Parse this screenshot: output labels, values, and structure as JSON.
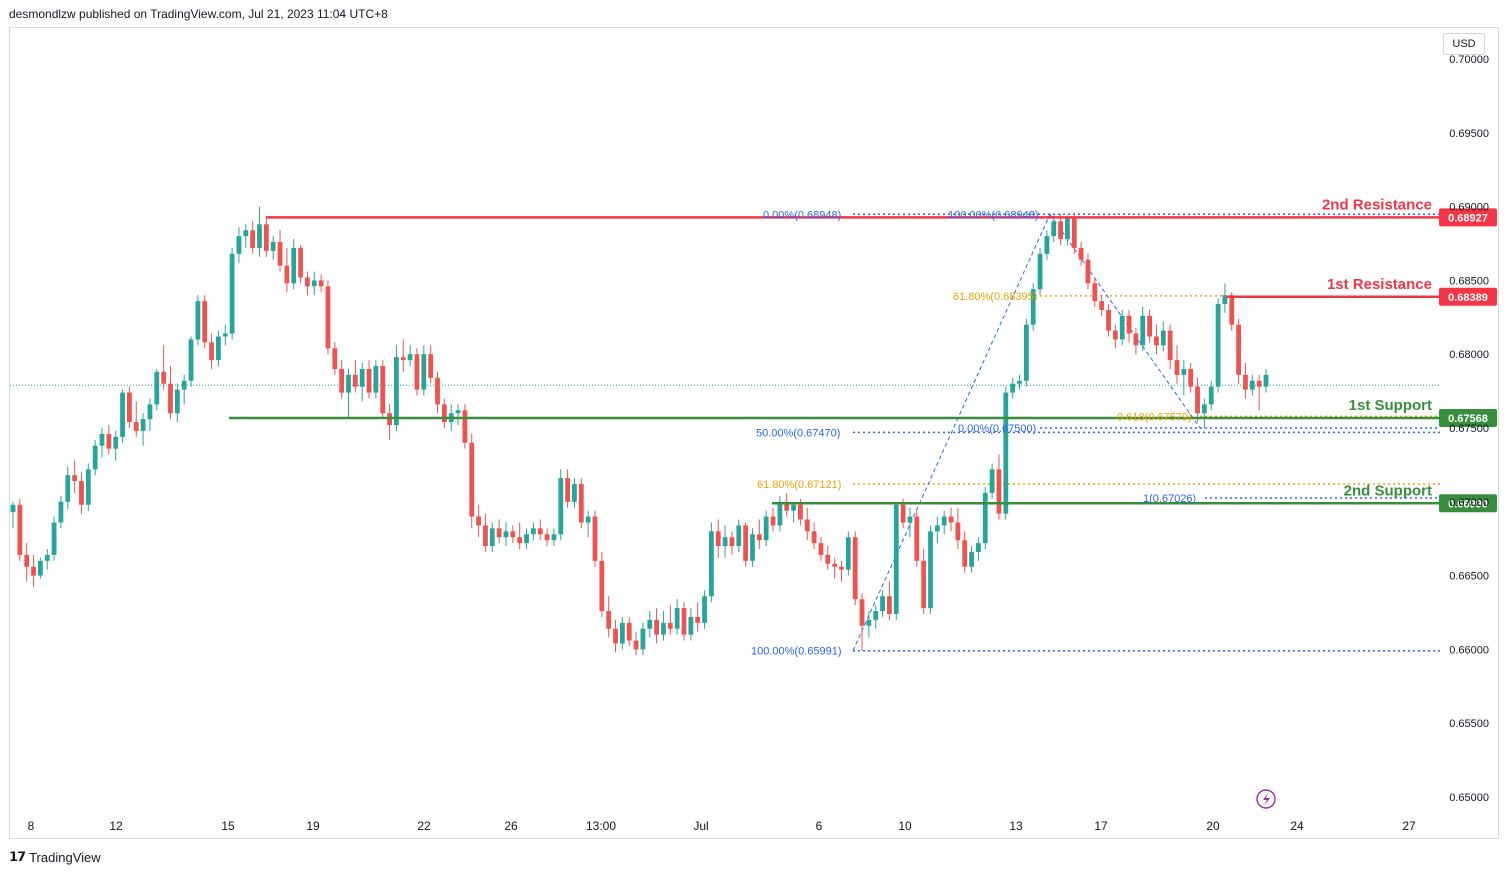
{
  "header": {
    "published": "desmondlzw published on TradingView.com, Jul 21, 2023 11:04 UTC+8"
  },
  "currency": "USD",
  "footer": {
    "logo": "𝟭𝟳",
    "brand": "TradingView"
  },
  "colors": {
    "up": "#26a69a",
    "down": "#ef5350",
    "resistance": "#f23645",
    "support": "#388e3c",
    "fib_blue": "#2962ff",
    "fib_orange": "#f0a30a",
    "grid_text": "#131722",
    "dotted_price": "#26a69a"
  },
  "chart_data": {
    "type": "candlestick",
    "title": "",
    "ylim": [
      0.648,
      0.7013
    ],
    "price_ticks": [
      "0.70000",
      "0.69500",
      "0.69000",
      "0.68500",
      "0.68000",
      "0.67500",
      "0.67000",
      "0.66500",
      "0.66000",
      "0.65500",
      "0.65000"
    ],
    "price_tick_values": [
      0.7,
      0.695,
      0.69,
      0.685,
      0.68,
      0.675,
      0.67,
      0.665,
      0.66,
      0.655,
      0.65
    ],
    "time_ticks": [
      "8",
      "12",
      "15",
      "19",
      "22",
      "26",
      "13:00",
      "Jul",
      "6",
      "10",
      "13",
      "17",
      "20",
      "24",
      "27"
    ],
    "levels": [
      {
        "name": "2nd Resistance",
        "value": 0.68927,
        "value_label": "0.68927",
        "kind": "resistance"
      },
      {
        "name": "1st Resistance",
        "value": 0.68389,
        "value_label": "0.68389",
        "kind": "resistance"
      },
      {
        "name": "1st Support",
        "value": 0.67568,
        "value_label": "0.67568",
        "kind": "support"
      },
      {
        "name": "2nd Support",
        "value": 0.6699,
        "value_label": "0.66990",
        "kind": "support"
      }
    ],
    "fib_labels": [
      {
        "text": "0.00%(0.68948)",
        "value": 0.68948,
        "color": "blue"
      },
      {
        "text": "100.00%(0.68948)",
        "value": 0.68948,
        "color": "blue"
      },
      {
        "text": "61.80%(0.68395)",
        "value": 0.68395,
        "color": "orange"
      },
      {
        "text": "50.00%(0.67470)",
        "value": 0.6747,
        "color": "blue"
      },
      {
        "text": "0.00%(0.67500)",
        "value": 0.675,
        "color": "blue"
      },
      {
        "text": "0.618(0.67579)",
        "value": 0.67579,
        "color": "orange"
      },
      {
        "text": "61.80%(0.67121)",
        "value": 0.67121,
        "color": "orange"
      },
      {
        "text": "1(0.67026)",
        "value": 0.67026,
        "color": "blue"
      },
      {
        "text": "100.00%(0.65991)",
        "value": 0.65991,
        "color": "blue"
      }
    ],
    "current_price": 0.6779,
    "candles": [
      [
        0.6693,
        0.67,
        0.6682,
        0.6698
      ],
      [
        0.6698,
        0.6702,
        0.666,
        0.6664
      ],
      [
        0.6664,
        0.6672,
        0.6646,
        0.6656
      ],
      [
        0.6656,
        0.6664,
        0.6642,
        0.665
      ],
      [
        0.665,
        0.6662,
        0.6648,
        0.666
      ],
      [
        0.666,
        0.6668,
        0.6654,
        0.6664
      ],
      [
        0.6664,
        0.669,
        0.666,
        0.6686
      ],
      [
        0.6686,
        0.6704,
        0.6682,
        0.67
      ],
      [
        0.67,
        0.6724,
        0.6695,
        0.6718
      ],
      [
        0.6718,
        0.6728,
        0.6706,
        0.6714
      ],
      [
        0.6714,
        0.672,
        0.6692,
        0.6698
      ],
      [
        0.6698,
        0.6726,
        0.6694,
        0.6722
      ],
      [
        0.6722,
        0.6742,
        0.6718,
        0.6738
      ],
      [
        0.6738,
        0.675,
        0.673,
        0.6746
      ],
      [
        0.6746,
        0.6752,
        0.6732,
        0.6736
      ],
      [
        0.6736,
        0.6748,
        0.6728,
        0.6744
      ],
      [
        0.6744,
        0.6776,
        0.674,
        0.6774
      ],
      [
        0.6774,
        0.6778,
        0.675,
        0.6754
      ],
      [
        0.6754,
        0.6768,
        0.6744,
        0.6748
      ],
      [
        0.6748,
        0.676,
        0.6738,
        0.6756
      ],
      [
        0.6756,
        0.677,
        0.6748,
        0.6766
      ],
      [
        0.6766,
        0.679,
        0.6762,
        0.6788
      ],
      [
        0.6788,
        0.6806,
        0.6776,
        0.678
      ],
      [
        0.678,
        0.6792,
        0.6756,
        0.676
      ],
      [
        0.676,
        0.678,
        0.6754,
        0.6776
      ],
      [
        0.6776,
        0.6786,
        0.6766,
        0.6782
      ],
      [
        0.6782,
        0.6812,
        0.6778,
        0.681
      ],
      [
        0.681,
        0.684,
        0.6806,
        0.6836
      ],
      [
        0.6836,
        0.684,
        0.6804,
        0.6808
      ],
      [
        0.6808,
        0.6814,
        0.679,
        0.6796
      ],
      [
        0.6796,
        0.6816,
        0.6792,
        0.6812
      ],
      [
        0.6812,
        0.682,
        0.6806,
        0.6814
      ],
      [
        0.6814,
        0.6872,
        0.681,
        0.6868
      ],
      [
        0.6868,
        0.6886,
        0.6862,
        0.688
      ],
      [
        0.688,
        0.6888,
        0.6872,
        0.6884
      ],
      [
        0.6884,
        0.689,
        0.6868,
        0.6872
      ],
      [
        0.6872,
        0.69,
        0.6866,
        0.6888
      ],
      [
        0.6888,
        0.6892,
        0.6866,
        0.687
      ],
      [
        0.687,
        0.688,
        0.6864,
        0.6876
      ],
      [
        0.6876,
        0.6884,
        0.6856,
        0.686
      ],
      [
        0.686,
        0.6872,
        0.6842,
        0.6848
      ],
      [
        0.6848,
        0.6878,
        0.6844,
        0.6872
      ],
      [
        0.6872,
        0.6874,
        0.6848,
        0.6852
      ],
      [
        0.6852,
        0.6856,
        0.684,
        0.6846
      ],
      [
        0.6846,
        0.6856,
        0.684,
        0.685
      ],
      [
        0.685,
        0.6854,
        0.6842,
        0.6846
      ],
      [
        0.6846,
        0.685,
        0.68,
        0.6804
      ],
      [
        0.6804,
        0.6808,
        0.6786,
        0.679
      ],
      [
        0.679,
        0.6796,
        0.677,
        0.6774
      ],
      [
        0.6774,
        0.679,
        0.6756,
        0.6786
      ],
      [
        0.6786,
        0.6796,
        0.6774,
        0.6778
      ],
      [
        0.6778,
        0.6794,
        0.6768,
        0.679
      ],
      [
        0.679,
        0.6796,
        0.677,
        0.6774
      ],
      [
        0.6774,
        0.6796,
        0.677,
        0.6792
      ],
      [
        0.6792,
        0.6796,
        0.6756,
        0.676
      ],
      [
        0.676,
        0.6766,
        0.6742,
        0.6752
      ],
      [
        0.6752,
        0.6806,
        0.6748,
        0.6798
      ],
      [
        0.6798,
        0.681,
        0.6788,
        0.6796
      ],
      [
        0.6796,
        0.6806,
        0.6792,
        0.68
      ],
      [
        0.68,
        0.6804,
        0.6772,
        0.6776
      ],
      [
        0.6776,
        0.6806,
        0.6772,
        0.68
      ],
      [
        0.68,
        0.6806,
        0.678,
        0.6784
      ],
      [
        0.6784,
        0.6788,
        0.676,
        0.6766
      ],
      [
        0.6766,
        0.677,
        0.675,
        0.6754
      ],
      [
        0.6754,
        0.6766,
        0.6748,
        0.676
      ],
      [
        0.676,
        0.6766,
        0.6752,
        0.6762
      ],
      [
        0.6762,
        0.6766,
        0.6736,
        0.674
      ],
      [
        0.674,
        0.6746,
        0.6682,
        0.669
      ],
      [
        0.669,
        0.6698,
        0.6676,
        0.6684
      ],
      [
        0.6684,
        0.6692,
        0.6666,
        0.667
      ],
      [
        0.667,
        0.6686,
        0.6666,
        0.6682
      ],
      [
        0.6682,
        0.6688,
        0.6672,
        0.6676
      ],
      [
        0.6676,
        0.6686,
        0.667,
        0.668
      ],
      [
        0.668,
        0.6684,
        0.6672,
        0.6676
      ],
      [
        0.6676,
        0.6686,
        0.6668,
        0.6672
      ],
      [
        0.6672,
        0.6682,
        0.6668,
        0.6678
      ],
      [
        0.6678,
        0.6686,
        0.6674,
        0.6682
      ],
      [
        0.6682,
        0.6688,
        0.6674,
        0.6678
      ],
      [
        0.6678,
        0.6682,
        0.667,
        0.6674
      ],
      [
        0.6674,
        0.6682,
        0.667,
        0.6678
      ],
      [
        0.6678,
        0.6722,
        0.6674,
        0.6716
      ],
      [
        0.6716,
        0.6722,
        0.6696,
        0.67
      ],
      [
        0.67,
        0.6716,
        0.6696,
        0.6712
      ],
      [
        0.6712,
        0.6716,
        0.6682,
        0.6686
      ],
      [
        0.6686,
        0.6694,
        0.6676,
        0.669
      ],
      [
        0.669,
        0.6694,
        0.6656,
        0.666
      ],
      [
        0.666,
        0.6666,
        0.6622,
        0.6626
      ],
      [
        0.6626,
        0.6636,
        0.6608,
        0.6614
      ],
      [
        0.6614,
        0.662,
        0.6598,
        0.6604
      ],
      [
        0.6604,
        0.6622,
        0.66,
        0.6618
      ],
      [
        0.6618,
        0.6622,
        0.6602,
        0.6606
      ],
      [
        0.6606,
        0.6612,
        0.6596,
        0.66
      ],
      [
        0.66,
        0.6618,
        0.6596,
        0.6614
      ],
      [
        0.6614,
        0.6626,
        0.6608,
        0.662
      ],
      [
        0.662,
        0.6628,
        0.6604,
        0.661
      ],
      [
        0.661,
        0.6626,
        0.6606,
        0.6618
      ],
      [
        0.6618,
        0.663,
        0.661,
        0.6614
      ],
      [
        0.6614,
        0.6634,
        0.661,
        0.6628
      ],
      [
        0.6628,
        0.6632,
        0.6606,
        0.661
      ],
      [
        0.661,
        0.6628,
        0.6606,
        0.6622
      ],
      [
        0.6622,
        0.6632,
        0.6612,
        0.6618
      ],
      [
        0.6618,
        0.664,
        0.6614,
        0.6636
      ],
      [
        0.6636,
        0.6686,
        0.6632,
        0.668
      ],
      [
        0.668,
        0.6688,
        0.6662,
        0.667
      ],
      [
        0.667,
        0.6684,
        0.6662,
        0.6676
      ],
      [
        0.6676,
        0.668,
        0.6664,
        0.667
      ],
      [
        0.667,
        0.6688,
        0.6666,
        0.6684
      ],
      [
        0.6684,
        0.6686,
        0.6656,
        0.666
      ],
      [
        0.666,
        0.6682,
        0.6656,
        0.6678
      ],
      [
        0.6678,
        0.6688,
        0.6668,
        0.6674
      ],
      [
        0.6674,
        0.6694,
        0.667,
        0.669
      ],
      [
        0.669,
        0.6696,
        0.668,
        0.6684
      ],
      [
        0.6684,
        0.6704,
        0.668,
        0.67
      ],
      [
        0.67,
        0.6706,
        0.669,
        0.6694
      ],
      [
        0.6694,
        0.67,
        0.6686,
        0.6698
      ],
      [
        0.6698,
        0.6702,
        0.6684,
        0.6688
      ],
      [
        0.6688,
        0.6696,
        0.6674,
        0.668
      ],
      [
        0.668,
        0.6686,
        0.6668,
        0.6672
      ],
      [
        0.6672,
        0.6676,
        0.666,
        0.6664
      ],
      [
        0.6664,
        0.667,
        0.6654,
        0.6658
      ],
      [
        0.6658,
        0.6662,
        0.6648,
        0.6656
      ],
      [
        0.6656,
        0.666,
        0.6646,
        0.6654
      ],
      [
        0.6654,
        0.668,
        0.665,
        0.6676
      ],
      [
        0.6676,
        0.668,
        0.663,
        0.6634
      ],
      [
        0.6634,
        0.6638,
        0.6599,
        0.6616
      ],
      [
        0.6616,
        0.6626,
        0.6608,
        0.662
      ],
      [
        0.662,
        0.663,
        0.6614,
        0.6626
      ],
      [
        0.6626,
        0.664,
        0.6622,
        0.6636
      ],
      [
        0.6636,
        0.6646,
        0.662,
        0.6624
      ],
      [
        0.6624,
        0.67,
        0.662,
        0.6698
      ],
      [
        0.6698,
        0.6702,
        0.6682,
        0.6686
      ],
      [
        0.6686,
        0.6696,
        0.6676,
        0.669
      ],
      [
        0.669,
        0.6694,
        0.6656,
        0.666
      ],
      [
        0.666,
        0.6668,
        0.6624,
        0.6628
      ],
      [
        0.6628,
        0.6684,
        0.6624,
        0.668
      ],
      [
        0.668,
        0.669,
        0.6672,
        0.6684
      ],
      [
        0.6684,
        0.6694,
        0.6678,
        0.669
      ],
      [
        0.669,
        0.6696,
        0.668,
        0.6686
      ],
      [
        0.6686,
        0.6696,
        0.6668,
        0.6674
      ],
      [
        0.6674,
        0.668,
        0.6652,
        0.6656
      ],
      [
        0.6656,
        0.667,
        0.6652,
        0.6666
      ],
      [
        0.6666,
        0.6676,
        0.666,
        0.6672
      ],
      [
        0.6672,
        0.671,
        0.6668,
        0.6706
      ],
      [
        0.6706,
        0.6726,
        0.6702,
        0.6722
      ],
      [
        0.6722,
        0.6732,
        0.6688,
        0.6692
      ],
      [
        0.6692,
        0.6778,
        0.6688,
        0.6774
      ],
      [
        0.6774,
        0.6784,
        0.677,
        0.678
      ],
      [
        0.678,
        0.6786,
        0.6776,
        0.6782
      ],
      [
        0.6782,
        0.6824,
        0.6778,
        0.682
      ],
      [
        0.682,
        0.6848,
        0.6816,
        0.6844
      ],
      [
        0.6844,
        0.6872,
        0.684,
        0.6868
      ],
      [
        0.6868,
        0.6884,
        0.6864,
        0.688
      ],
      [
        0.688,
        0.6894,
        0.6876,
        0.689
      ],
      [
        0.689,
        0.6895,
        0.6874,
        0.6878
      ],
      [
        0.6878,
        0.6894,
        0.6874,
        0.6892
      ],
      [
        0.6892,
        0.6896,
        0.6868,
        0.6872
      ],
      [
        0.6872,
        0.6876,
        0.686,
        0.6864
      ],
      [
        0.6864,
        0.6868,
        0.6844,
        0.6848
      ],
      [
        0.6848,
        0.6852,
        0.6832,
        0.6836
      ],
      [
        0.6836,
        0.684,
        0.6826,
        0.683
      ],
      [
        0.683,
        0.6834,
        0.6812,
        0.6816
      ],
      [
        0.6816,
        0.682,
        0.6804,
        0.681
      ],
      [
        0.681,
        0.683,
        0.6806,
        0.6826
      ],
      [
        0.6826,
        0.683,
        0.6808,
        0.6814
      ],
      [
        0.6814,
        0.6818,
        0.68,
        0.6806
      ],
      [
        0.6806,
        0.6832,
        0.6802,
        0.6826
      ],
      [
        0.6826,
        0.683,
        0.6808,
        0.6812
      ],
      [
        0.6812,
        0.682,
        0.68,
        0.6806
      ],
      [
        0.6806,
        0.6822,
        0.6802,
        0.6816
      ],
      [
        0.6816,
        0.682,
        0.679,
        0.6796
      ],
      [
        0.6796,
        0.6806,
        0.678,
        0.6786
      ],
      [
        0.6786,
        0.6796,
        0.6772,
        0.679
      ],
      [
        0.679,
        0.6794,
        0.6774,
        0.6778
      ],
      [
        0.6778,
        0.6784,
        0.6754,
        0.676
      ],
      [
        0.676,
        0.677,
        0.675,
        0.6766
      ],
      [
        0.6766,
        0.6782,
        0.6762,
        0.6778
      ],
      [
        0.6778,
        0.6838,
        0.6774,
        0.6834
      ],
      [
        0.6834,
        0.6848,
        0.6828,
        0.684
      ],
      [
        0.684,
        0.6842,
        0.6816,
        0.682
      ],
      [
        0.682,
        0.6824,
        0.678,
        0.6786
      ],
      [
        0.6786,
        0.6794,
        0.677,
        0.6776
      ],
      [
        0.6776,
        0.6786,
        0.6772,
        0.6782
      ],
      [
        0.6782,
        0.6786,
        0.6762,
        0.6778
      ],
      [
        0.6778,
        0.679,
        0.6774,
        0.6786
      ]
    ]
  }
}
